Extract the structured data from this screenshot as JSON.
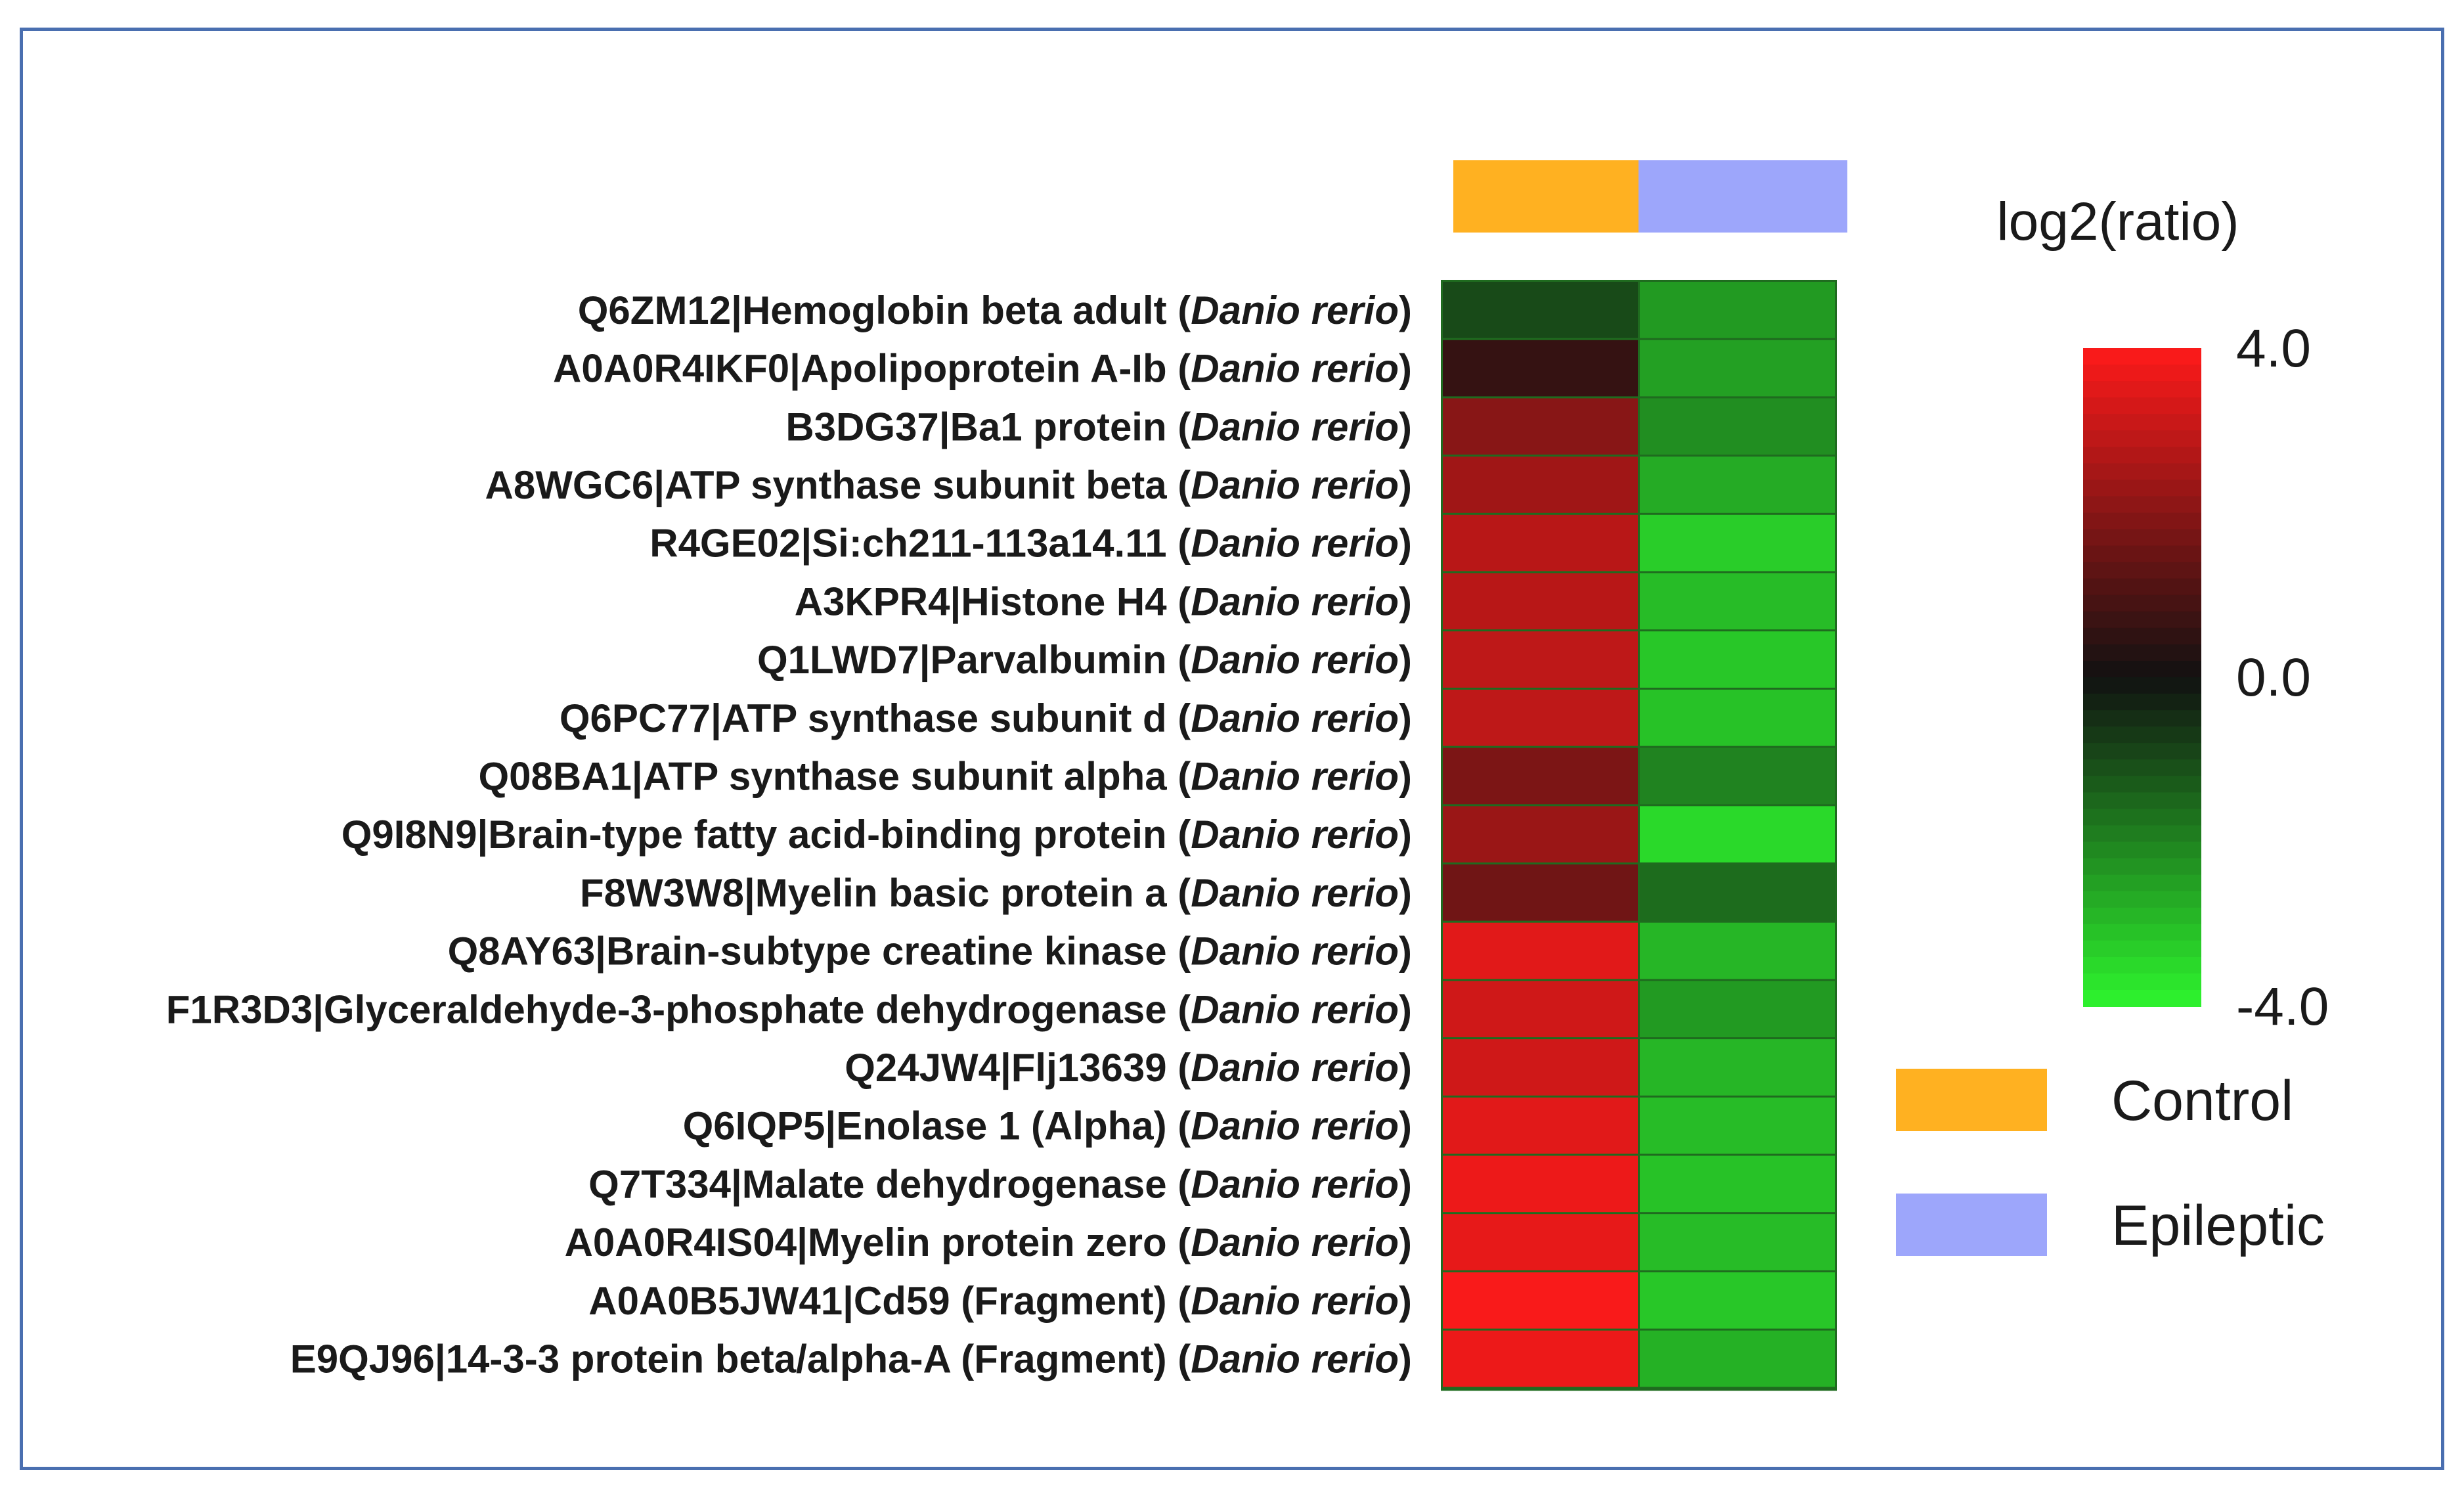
{
  "chart_data": {
    "type": "heatmap",
    "columns": [
      {
        "name": "Control",
        "color": "#FFB121"
      },
      {
        "name": "Epileptic",
        "color": "#9DA6FB"
      }
    ],
    "rows": [
      {
        "protein": "Q6ZM12|Hemoglobin beta adult",
        "species": "Danio rerio",
        "values": [
          -1.0,
          -2.4
        ]
      },
      {
        "protein": "A0A0R4IKF0|Apolipoprotein A-Ib",
        "species": "Danio rerio",
        "values": [
          0.6,
          -2.5
        ]
      },
      {
        "protein": "B3DG37|Ba1 protein",
        "species": "Danio rerio",
        "values": [
          2.0,
          -2.2
        ]
      },
      {
        "protein": "A8WGC6|ATP synthase subunit beta",
        "species": "Danio rerio",
        "values": [
          2.4,
          -2.7
        ]
      },
      {
        "protein": "R4GE02|Si:ch211-113a14.11",
        "species": "Danio rerio",
        "values": [
          2.8,
          -3.3
        ]
      },
      {
        "protein": "A3KPR4|Histone H4",
        "species": "Danio rerio",
        "values": [
          2.8,
          -3.0
        ]
      },
      {
        "protein": "Q1LWD7|Parvalbumin",
        "species": "Danio rerio",
        "values": [
          2.9,
          -3.2
        ]
      },
      {
        "protein": "Q6PC77|ATP synthase subunit d",
        "species": "Danio rerio",
        "values": [
          2.9,
          -3.1
        ]
      },
      {
        "protein": "Q08BA1|ATP synthase subunit alpha",
        "species": "Danio rerio",
        "values": [
          1.8,
          -2.0
        ]
      },
      {
        "protein": "Q9I8N9|Brain-type fatty acid-binding protein",
        "species": "Danio rerio",
        "values": [
          2.3,
          -3.5
        ]
      },
      {
        "protein": "F8W3W8|Myelin basic protein a",
        "species": "Danio rerio",
        "values": [
          1.6,
          -1.6
        ]
      },
      {
        "protein": "Q8AY63|Brain-subtype creatine kinase",
        "species": "Danio rerio",
        "values": [
          3.5,
          -2.9
        ]
      },
      {
        "protein": "F1R3D3|Glyceraldehyde-3-phosphate dehydrogenase",
        "species": "Danio rerio",
        "values": [
          3.2,
          -2.4
        ]
      },
      {
        "protein": "Q24JW4|Flj13639",
        "species": "Danio rerio",
        "values": [
          3.2,
          -2.9
        ]
      },
      {
        "protein": "Q6IQP5|Enolase 1  (Alpha)",
        "species": "Danio rerio",
        "values": [
          3.5,
          -3.0
        ]
      },
      {
        "protein": "Q7T334|Malate dehydrogenase",
        "species": "Danio rerio",
        "values": [
          3.7,
          -3.1
        ]
      },
      {
        "protein": "A0A0R4IS04|Myelin protein zero",
        "species": "Danio rerio",
        "values": [
          3.6,
          -3.0
        ]
      },
      {
        "protein": "A0A0B5JW41|Cd59 (Fragment)",
        "species": "Danio rerio",
        "values": [
          3.9,
          -3.2
        ]
      },
      {
        "protein": "E9QJ96|14-3-3 protein beta/alpha-A (Fragment)",
        "species": "Danio rerio",
        "values": [
          3.7,
          -2.8
        ]
      }
    ],
    "color_scale": {
      "title": "log2(ratio)",
      "min": -4.0,
      "max": 4.0,
      "ticks": [
        "4.0",
        "0.0",
        "-4.0"
      ],
      "tick_values": [
        4.0,
        0.0,
        -4.0
      ],
      "low_color": "#2EF52E",
      "mid_color": "#111111",
      "high_color": "#FF1A1A"
    },
    "legend": {
      "placement": "right",
      "items": [
        {
          "label": "Control",
          "color": "#FFB121"
        },
        {
          "label": "Epileptic",
          "color": "#9DA6FB"
        }
      ]
    }
  }
}
